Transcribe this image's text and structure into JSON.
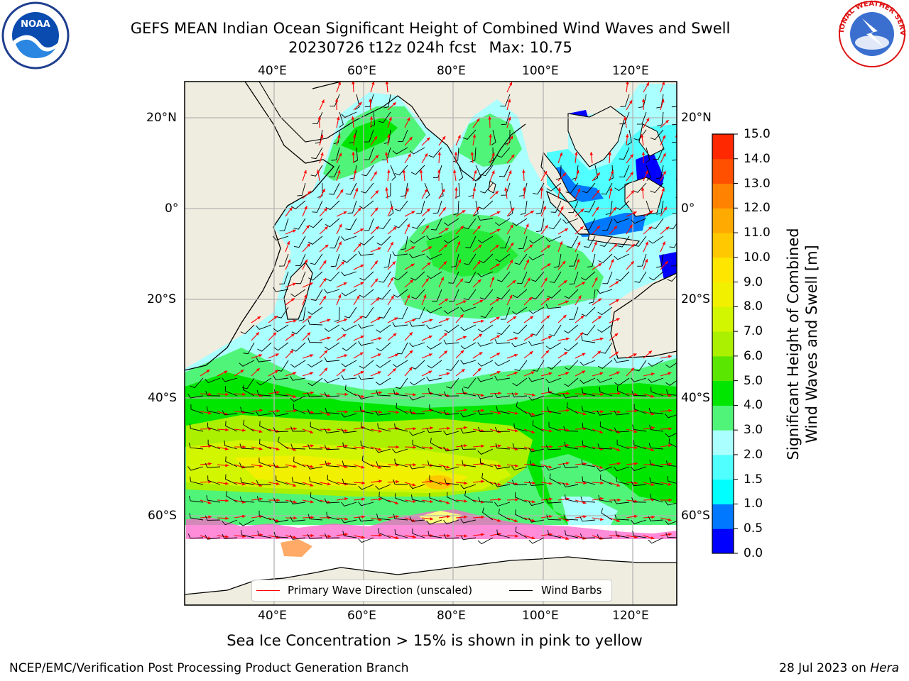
{
  "title_line1": "GEFS MEAN Indian Ocean Significant Height of Combined Wind Waves and Swell",
  "title_run": "20230726 t12z 024h fcst",
  "title_max": "Max: 10.75",
  "lon_labels": [
    "40°E",
    "60°E",
    "80°E",
    "100°E",
    "120°E"
  ],
  "lat_labels": [
    "20°N",
    "0°",
    "20°S",
    "40°S",
    "60°S"
  ],
  "colorbar": {
    "label": "Significant Height of Combined Wind Waves and Swell [m]",
    "label_line1": "Significant Height of Combined",
    "label_line2": "Wind Waves and Swell [m]",
    "ticks": [
      "0.0",
      "0.5",
      "1.0",
      "1.5",
      "2.0",
      "3.0",
      "4.0",
      "5.0",
      "6.0",
      "7.0",
      "8.0",
      "9.0",
      "10.0",
      "11.0",
      "12.0",
      "13.0",
      "14.0",
      "15.0"
    ],
    "colors": [
      "#0000ff",
      "#0078ff",
      "#00ffff",
      "#50ffff",
      "#aaffff",
      "#50f478",
      "#00e600",
      "#5ae600",
      "#aaf000",
      "#d2f500",
      "#f0f000",
      "#ffe600",
      "#ffc800",
      "#ffaa00",
      "#ff8200",
      "#ff5000",
      "#ff2800"
    ]
  },
  "legend": {
    "wave": "Primary Wave Direction (unscaled)",
    "wind": "Wind Barbs",
    "wave_color": "#ff0000",
    "wind_color": "#000000"
  },
  "sea_ice_note": "Sea Ice Concentration > 15% is shown in pink to yellow",
  "footer_left": "NCEP/EMC/Verification Post Processing Product Generation Branch",
  "footer_date": "28 Jul 2023 on",
  "footer_host": "Hera",
  "logos": {
    "left": "NOAA",
    "right": "NATIONAL WEATHER SERVICE"
  },
  "colors": {
    "land": "#efeddf",
    "grid": "#b4b4b4",
    "ice_pink": "#ff66cc",
    "ice_yellow": "#ffff80"
  }
}
